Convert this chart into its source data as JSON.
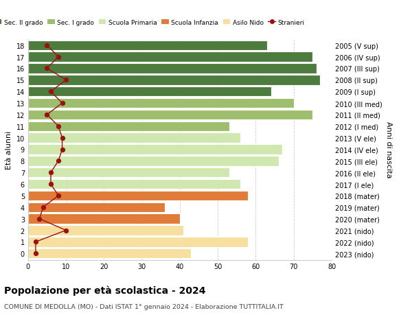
{
  "ages": [
    0,
    1,
    2,
    3,
    4,
    5,
    6,
    7,
    8,
    9,
    10,
    11,
    12,
    13,
    14,
    15,
    16,
    17,
    18
  ],
  "year_labels": [
    "2023 (nido)",
    "2022 (nido)",
    "2021 (nido)",
    "2020 (mater)",
    "2019 (mater)",
    "2018 (mater)",
    "2017 (I ele)",
    "2016 (II ele)",
    "2015 (III ele)",
    "2014 (IV ele)",
    "2013 (V ele)",
    "2012 (I med)",
    "2011 (II med)",
    "2010 (III med)",
    "2009 (I sup)",
    "2008 (II sup)",
    "2007 (III sup)",
    "2006 (IV sup)",
    "2005 (V sup)"
  ],
  "bar_values": [
    43,
    58,
    41,
    40,
    36,
    58,
    56,
    53,
    66,
    67,
    56,
    53,
    75,
    70,
    64,
    77,
    76,
    75,
    63
  ],
  "stranieri_values": [
    2,
    2,
    10,
    3,
    4,
    8,
    6,
    6,
    8,
    9,
    9,
    8,
    5,
    9,
    6,
    10,
    5,
    8,
    5
  ],
  "bar_colors": [
    "#f7dfa0",
    "#f7dfa0",
    "#f7dfa0",
    "#e07b39",
    "#e07b39",
    "#e07b39",
    "#d0e8b0",
    "#d0e8b0",
    "#d0e8b0",
    "#d0e8b0",
    "#d0e8b0",
    "#9ebe6e",
    "#9ebe6e",
    "#9ebe6e",
    "#4d7c3e",
    "#4d7c3e",
    "#4d7c3e",
    "#4d7c3e",
    "#4d7c3e"
  ],
  "legend_labels": [
    "Sec. II grado",
    "Sec. I grado",
    "Scuola Primaria",
    "Scuola Infanzia",
    "Asilo Nido",
    "Stranieri"
  ],
  "legend_colors": [
    "#4d7c3e",
    "#9ebe6e",
    "#d0e8b0",
    "#e07b39",
    "#f7dfa0",
    "#9b1010"
  ],
  "ylabel": "Età alunni",
  "ylabel2": "Anni di nascita",
  "title": "Popolazione per età scolastica - 2024",
  "subtitle": "COMUNE DI MEDOLLA (MO) - Dati ISTAT 1° gennaio 2024 - Elaborazione TUTTITALIA.IT",
  "xlim": [
    0,
    80
  ],
  "background_color": "#ffffff",
  "grid_color": "#cccccc",
  "stranieri_color": "#9b1010",
  "bar_height": 0.85
}
